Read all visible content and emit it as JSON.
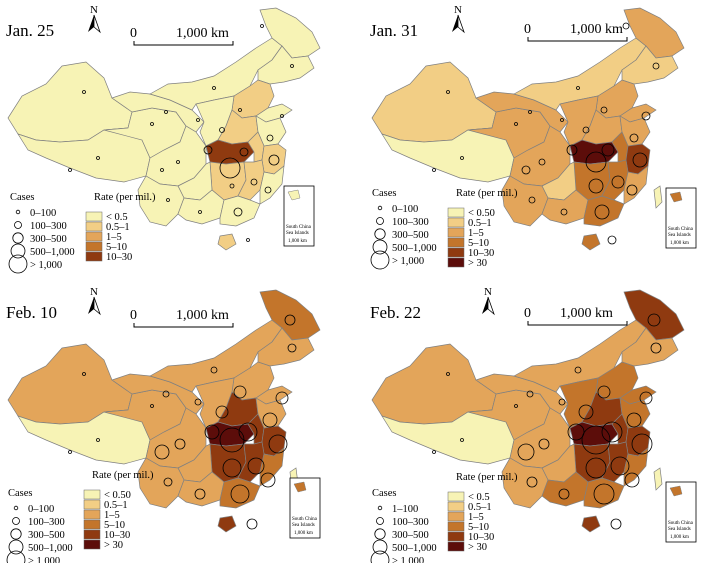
{
  "colors": {
    "outline": "#808080",
    "lt_05": "#f7f3b5",
    "c05_1": "#f2ce85",
    "c1_5": "#e3a55a",
    "c5_10": "#c3752b",
    "c10_30": "#8f3a10",
    "gt_30": "#5c0d0a"
  },
  "panels": [
    {
      "date": "Jan. 25",
      "north": "N",
      "scale": {
        "zero": "0",
        "dist": "1,000 km"
      },
      "cases_title": "Cases",
      "cases": [
        "0–100",
        "100–300",
        "300–500",
        "500–1,000",
        "> 1,000"
      ],
      "rate_title": "Rate (per mil.)",
      "rate": [
        "< 0.5",
        "0.5–1",
        "1–5",
        "5–10",
        "10–30"
      ],
      "inset": {
        "line1": "South China",
        "line2": "Sea Islands",
        "scale": "1,000 km"
      }
    },
    {
      "date": "Jan. 31",
      "north": "N",
      "scale": {
        "zero": "0",
        "dist": "1,000 km"
      },
      "cases_title": "Cases",
      "cases": [
        "0–100",
        "100–300",
        "300–500",
        "500–1,000",
        "> 1,000"
      ],
      "rate_title": "Rate (per mil.)",
      "rate": [
        "< 0.50",
        "0.5–1",
        "1–5",
        "5–10",
        "10–30",
        "> 30"
      ],
      "inset": {
        "line1": "South China",
        "line2": "Sea Islands",
        "scale": "1,000 km"
      }
    },
    {
      "date": "Feb. 10",
      "north": "N",
      "scale": {
        "zero": "0",
        "dist": "1,000 km"
      },
      "cases_title": "Cases",
      "cases": [
        "0–100",
        "100–300",
        "300–500",
        "500–1,000",
        "> 1,000"
      ],
      "rate_title": "Rate (per mil.)",
      "rate": [
        "< 0.50",
        "0.5–1",
        "1–5",
        "5–10",
        "10–30",
        "> 30"
      ],
      "inset": {
        "line1": "South China",
        "line2": "Sea Islands",
        "scale": "1,000 km"
      }
    },
    {
      "date": "Feb. 22",
      "north": "N",
      "scale": {
        "zero": "0",
        "dist": "1,000 km"
      },
      "cases_title": "Cases",
      "cases": [
        "1–100",
        "100–300",
        "300–500",
        "500–1,000",
        "> 1,000"
      ],
      "rate_title": "Rate (per mil.)",
      "rate": [
        "< 0.5",
        "0.5–1",
        "1–5",
        "5–10",
        "10–30",
        "> 30"
      ],
      "inset": {
        "line1": "South China",
        "line2": "Sea Islands",
        "scale": "1,000 km"
      }
    }
  ]
}
